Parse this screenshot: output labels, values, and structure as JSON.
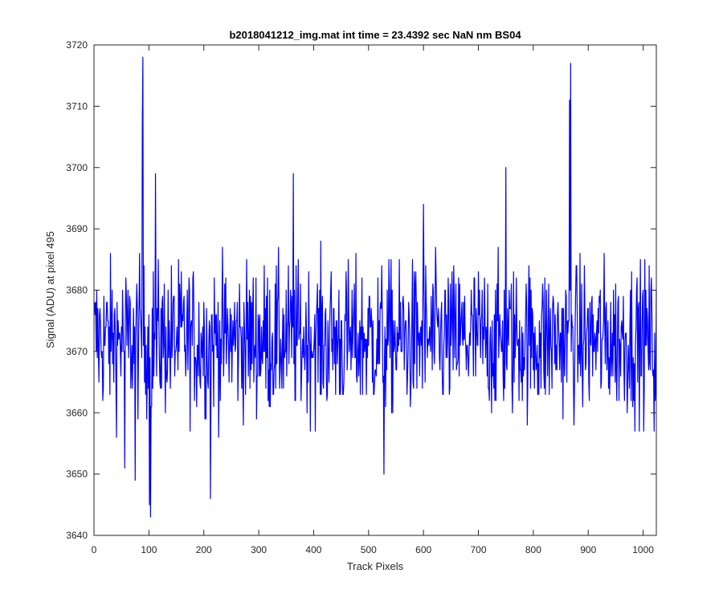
{
  "chart_data": {
    "type": "line",
    "title": "b2018041212_img.mat int time = 23.4392 sec  NaN nm BS04",
    "xlabel": "Track Pixels",
    "ylabel": "Signal (ADU) at pixel 495",
    "xlim": [
      0,
      1024
    ],
    "ylim": [
      3640,
      3720
    ],
    "xticks": [
      0,
      100,
      200,
      300,
      400,
      500,
      600,
      700,
      800,
      900,
      1000
    ],
    "yticks": [
      3640,
      3650,
      3660,
      3670,
      3680,
      3690,
      3700,
      3710,
      3720
    ],
    "grid": false,
    "line_color": "#0000ff",
    "series": [
      {
        "x_start": 1,
        "x_step": 1,
        "count": 1024,
        "baseline": 3672,
        "noise_range": [
          3655,
          3689
        ],
        "notable_points": [
          {
            "x": 89,
            "y": 3718
          },
          {
            "x": 88,
            "y": 3707
          },
          {
            "x": 103,
            "y": 3643
          },
          {
            "x": 101,
            "y": 3645
          },
          {
            "x": 112,
            "y": 3699
          },
          {
            "x": 212,
            "y": 3646
          },
          {
            "x": 363,
            "y": 3699
          },
          {
            "x": 528,
            "y": 3650
          },
          {
            "x": 600,
            "y": 3694
          },
          {
            "x": 750,
            "y": 3700
          },
          {
            "x": 868,
            "y": 3717
          },
          {
            "x": 866,
            "y": 3711
          },
          {
            "x": 56,
            "y": 3651
          },
          {
            "x": 75,
            "y": 3649
          },
          {
            "x": 1020,
            "y": 3657
          }
        ]
      }
    ]
  }
}
